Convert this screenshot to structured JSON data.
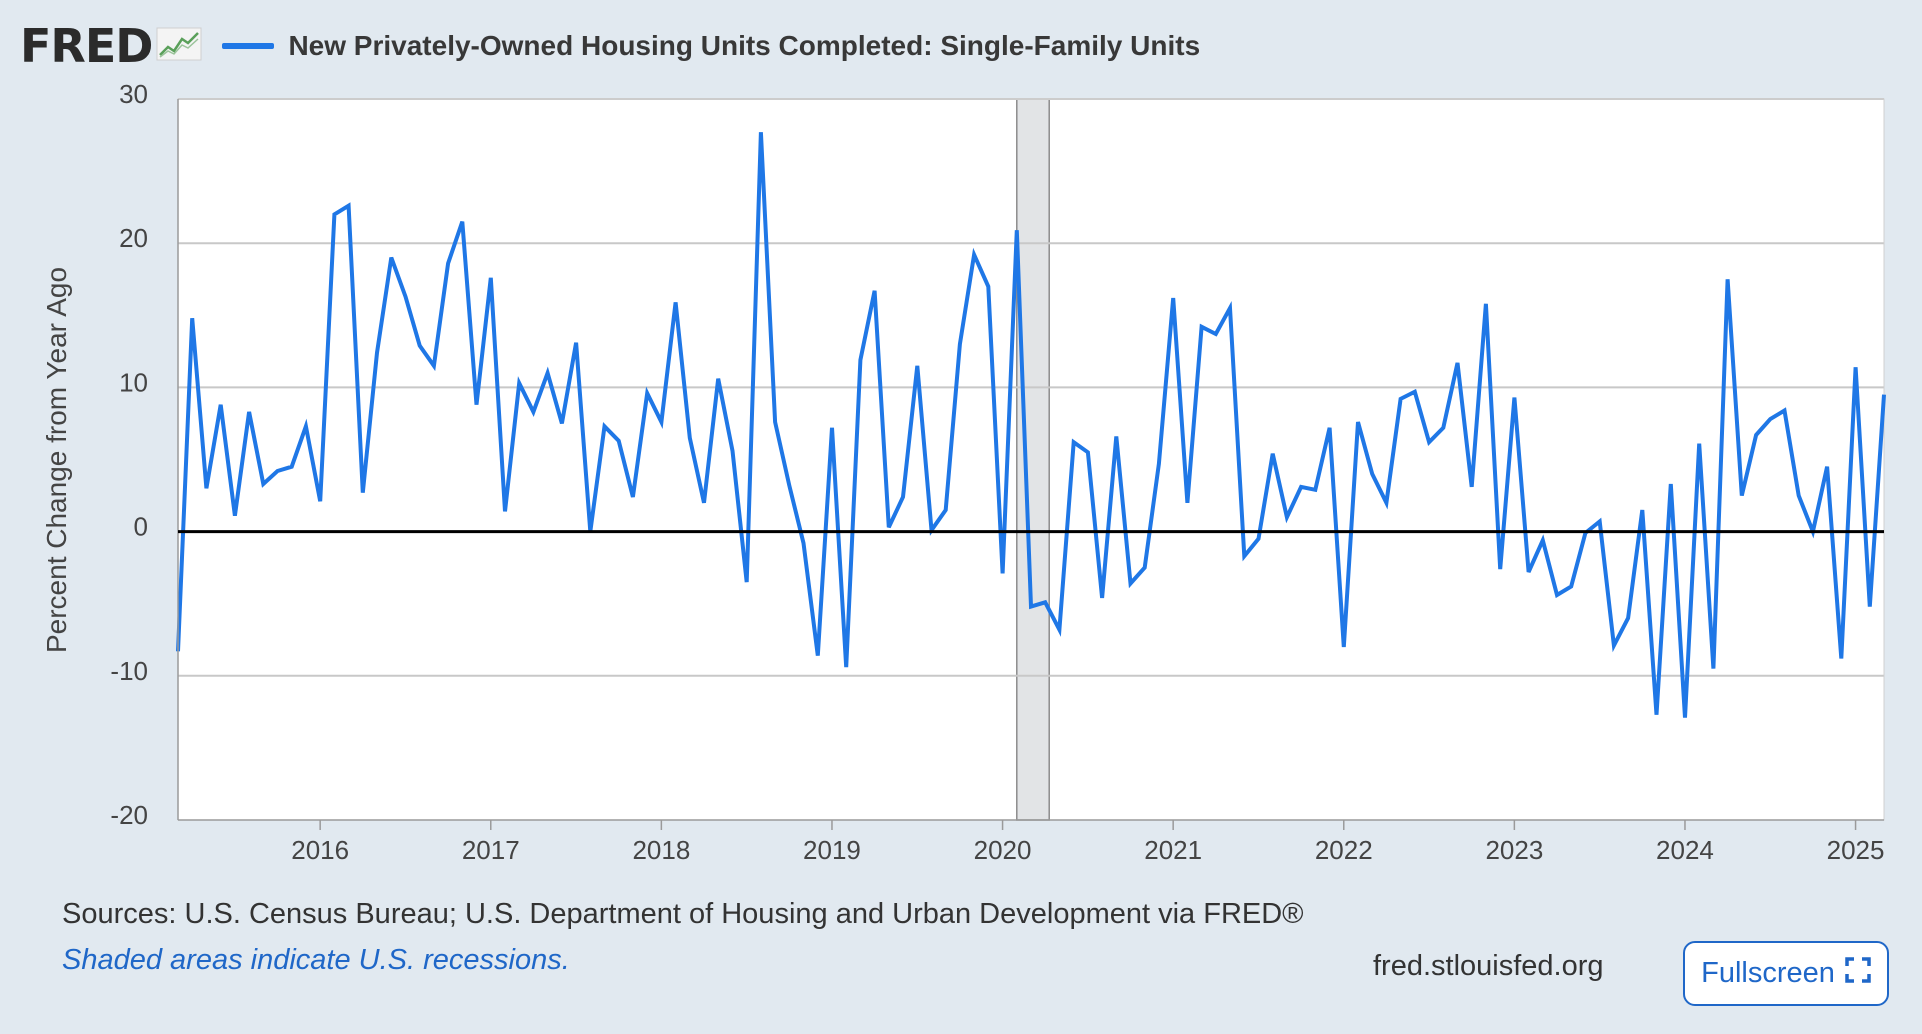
{
  "header": {
    "logo_text": "FRED",
    "logo_icon": "chart-line-icon",
    "title": "New Privately-Owned Housing Units Completed: Single-Family Units"
  },
  "footer": {
    "sources": "Sources: U.S. Census Bureau; U.S. Department of Housing and Urban Development via FRED®",
    "recession_note": "Shaded areas indicate U.S. recessions.",
    "site": "fred.stlouisfed.org",
    "fullscreen_label": "Fullscreen",
    "fullscreen_icon": "expand-icon"
  },
  "colors": {
    "series": "#1f77e6",
    "background": "#e1e9f0",
    "plot_bg": "#ffffff",
    "grid": "#c8c8c8",
    "recession": "#e2e4e6",
    "zero_line": "#000000",
    "link": "#1f67c8"
  },
  "chart_data": {
    "type": "line",
    "title": "New Privately-Owned Housing Units Completed: Single-Family Units",
    "ylabel": "Percent Change from Year Ago",
    "xlabel": "",
    "ylim": [
      -20,
      30
    ],
    "yticks": [
      -20,
      -10,
      0,
      10,
      20,
      30
    ],
    "xticks": [
      "2016",
      "2017",
      "2018",
      "2019",
      "2020",
      "2021",
      "2022",
      "2023",
      "2024",
      "2025"
    ],
    "x_start": "2015-03",
    "x_end": "2025-03",
    "frequency": "monthly",
    "grid": true,
    "zero_line": true,
    "recessions": [
      {
        "start": "2020-02",
        "end": "2020-04"
      }
    ],
    "series": [
      {
        "name": "New Privately-Owned Housing Units Completed: Single-Family Units",
        "x": [
          "2015-03",
          "2015-04",
          "2015-05",
          "2015-06",
          "2015-07",
          "2015-08",
          "2015-09",
          "2015-10",
          "2015-11",
          "2015-12",
          "2016-01",
          "2016-02",
          "2016-03",
          "2016-04",
          "2016-05",
          "2016-06",
          "2016-07",
          "2016-08",
          "2016-09",
          "2016-10",
          "2016-11",
          "2016-12",
          "2017-01",
          "2017-02",
          "2017-03",
          "2017-04",
          "2017-05",
          "2017-06",
          "2017-07",
          "2017-08",
          "2017-09",
          "2017-10",
          "2017-11",
          "2017-12",
          "2018-01",
          "2018-02",
          "2018-03",
          "2018-04",
          "2018-05",
          "2018-06",
          "2018-07",
          "2018-08",
          "2018-09",
          "2018-10",
          "2018-11",
          "2018-12",
          "2019-01",
          "2019-02",
          "2019-03",
          "2019-04",
          "2019-05",
          "2019-06",
          "2019-07",
          "2019-08",
          "2019-09",
          "2019-10",
          "2019-11",
          "2019-12",
          "2020-01",
          "2020-02",
          "2020-03",
          "2020-04",
          "2020-05",
          "2020-06",
          "2020-07",
          "2020-08",
          "2020-09",
          "2020-10",
          "2020-11",
          "2020-12",
          "2021-01",
          "2021-02",
          "2021-03",
          "2021-04",
          "2021-05",
          "2021-06",
          "2021-07",
          "2021-08",
          "2021-09",
          "2021-10",
          "2021-11",
          "2021-12",
          "2022-01",
          "2022-02",
          "2022-03",
          "2022-04",
          "2022-05",
          "2022-06",
          "2022-07",
          "2022-08",
          "2022-09",
          "2022-10",
          "2022-11",
          "2022-12",
          "2023-01",
          "2023-02",
          "2023-03",
          "2023-04",
          "2023-05",
          "2023-06",
          "2023-07",
          "2023-08",
          "2023-09",
          "2023-10",
          "2023-11",
          "2023-12",
          "2024-01",
          "2024-02",
          "2024-03",
          "2024-04",
          "2024-05",
          "2024-06",
          "2024-07",
          "2024-08",
          "2024-09",
          "2024-10",
          "2024-11",
          "2024-12",
          "2025-01",
          "2025-02",
          "2025-03"
        ],
        "values": [
          -8.3,
          14.8,
          3.0,
          8.8,
          1.1,
          8.3,
          3.3,
          4.2,
          4.5,
          7.3,
          2.1,
          22.0,
          22.6,
          2.7,
          12.4,
          19.0,
          16.3,
          12.9,
          11.5,
          18.6,
          21.5,
          8.8,
          17.6,
          1.4,
          10.3,
          8.3,
          11.0,
          7.5,
          13.1,
          0.0,
          7.3,
          6.3,
          2.4,
          9.6,
          7.6,
          15.9,
          6.5,
          2.0,
          10.6,
          5.6,
          -3.5,
          27.7,
          7.6,
          3.2,
          -0.8,
          -8.6,
          7.2,
          -9.4,
          11.9,
          16.7,
          0.3,
          2.4,
          11.5,
          0.1,
          1.5,
          13.0,
          19.2,
          17.0,
          -2.9,
          20.9,
          -5.2,
          -4.9,
          -6.8,
          6.2,
          5.5,
          -4.6,
          6.6,
          -3.6,
          -2.5,
          4.7,
          16.2,
          2.0,
          14.2,
          13.7,
          15.5,
          -1.7,
          -0.5,
          5.4,
          1.0,
          3.1,
          2.9,
          7.2,
          -8.0,
          7.6,
          4.0,
          2.0,
          9.2,
          9.7,
          6.2,
          7.2,
          11.7,
          3.1,
          15.8,
          -2.6,
          9.3,
          -2.8,
          -0.6,
          -4.4,
          -3.8,
          -0.1,
          0.7,
          -7.9,
          -6.0,
          1.5,
          -12.7,
          3.3,
          -12.9,
          6.1,
          -9.5,
          17.5,
          2.5,
          6.7,
          7.8,
          8.4,
          2.5,
          0.0,
          4.5,
          -8.8,
          11.4,
          -5.2,
          9.5
        ]
      }
    ]
  }
}
